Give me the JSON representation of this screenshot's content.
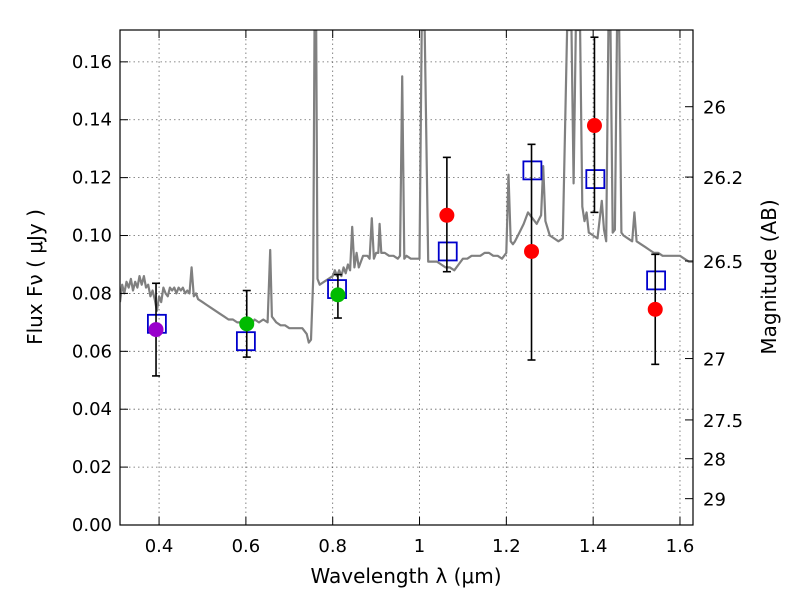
{
  "chart_data": {
    "type": "scatter",
    "xlabel": "Wavelength  λ (μm)",
    "ylabel": "Flux  Fν  ( μJy )",
    "y2label": "Magnitude (AB)",
    "xlim": [
      0.31,
      1.63
    ],
    "ylim": [
      0.0,
      0.171
    ],
    "grid": true,
    "x_ticks": [
      0.4,
      0.6,
      0.8,
      1.0,
      1.2,
      1.4,
      1.6
    ],
    "x_tick_labels": [
      "0.4",
      "0.6",
      "0.8",
      "1",
      "1.2",
      "1.4",
      "1.6"
    ],
    "y_ticks": [
      0.0,
      0.02,
      0.04,
      0.06,
      0.08,
      0.1,
      0.12,
      0.14,
      0.16
    ],
    "y_tick_labels": [
      "0.00",
      "0.02",
      "0.04",
      "0.06",
      "0.08",
      "0.10",
      "0.12",
      "0.14",
      "0.16"
    ],
    "y2_ticks": [
      {
        "label": "26",
        "flux": 0.1445
      },
      {
        "label": "26.2",
        "flux": 0.1202
      },
      {
        "label": "26.5",
        "flux": 0.0912
      },
      {
        "label": "27",
        "flux": 0.0575
      },
      {
        "label": "27.5",
        "flux": 0.0363
      },
      {
        "label": "28",
        "flux": 0.0229
      },
      {
        "label": "29",
        "flux": 0.0091
      }
    ],
    "series": [
      {
        "kind": "spectrum",
        "color": "#808080",
        "points": [
          [
            0.31,
            0.077
          ],
          [
            0.315,
            0.083
          ],
          [
            0.32,
            0.08
          ],
          [
            0.325,
            0.084
          ],
          [
            0.33,
            0.082
          ],
          [
            0.335,
            0.085
          ],
          [
            0.34,
            0.081
          ],
          [
            0.345,
            0.084
          ],
          [
            0.35,
            0.082
          ],
          [
            0.355,
            0.086
          ],
          [
            0.36,
            0.083
          ],
          [
            0.365,
            0.086
          ],
          [
            0.37,
            0.082
          ],
          [
            0.375,
            0.083
          ],
          [
            0.38,
            0.079
          ],
          [
            0.385,
            0.081
          ],
          [
            0.39,
            0.078
          ],
          [
            0.395,
            0.074
          ],
          [
            0.4,
            0.079
          ],
          [
            0.405,
            0.077
          ],
          [
            0.41,
            0.082
          ],
          [
            0.415,
            0.08
          ],
          [
            0.42,
            0.079
          ],
          [
            0.425,
            0.082
          ],
          [
            0.43,
            0.081
          ],
          [
            0.435,
            0.082
          ],
          [
            0.44,
            0.08
          ],
          [
            0.445,
            0.082
          ],
          [
            0.45,
            0.081
          ],
          [
            0.455,
            0.082
          ],
          [
            0.46,
            0.08
          ],
          [
            0.465,
            0.081
          ],
          [
            0.47,
            0.08
          ],
          [
            0.475,
            0.089
          ],
          [
            0.48,
            0.079
          ],
          [
            0.485,
            0.08
          ],
          [
            0.49,
            0.078
          ],
          [
            0.5,
            0.077
          ],
          [
            0.51,
            0.076
          ],
          [
            0.52,
            0.075
          ],
          [
            0.53,
            0.074
          ],
          [
            0.54,
            0.073
          ],
          [
            0.55,
            0.072
          ],
          [
            0.56,
            0.071
          ],
          [
            0.57,
            0.071
          ],
          [
            0.58,
            0.07
          ],
          [
            0.59,
            0.07
          ],
          [
            0.6,
            0.069
          ],
          [
            0.605,
            0.07
          ],
          [
            0.61,
            0.069
          ],
          [
            0.62,
            0.071
          ],
          [
            0.63,
            0.07
          ],
          [
            0.64,
            0.071
          ],
          [
            0.65,
            0.07
          ],
          [
            0.656,
            0.095
          ],
          [
            0.66,
            0.072
          ],
          [
            0.67,
            0.07
          ],
          [
            0.68,
            0.069
          ],
          [
            0.69,
            0.069
          ],
          [
            0.7,
            0.068
          ],
          [
            0.71,
            0.068
          ],
          [
            0.72,
            0.068
          ],
          [
            0.73,
            0.068
          ],
          [
            0.74,
            0.066
          ],
          [
            0.745,
            0.063
          ],
          [
            0.75,
            0.064
          ],
          [
            0.755,
            0.085
          ],
          [
            0.758,
            0.171
          ],
          [
            0.762,
            0.171
          ],
          [
            0.765,
            0.085
          ],
          [
            0.77,
            0.083
          ],
          [
            0.78,
            0.084
          ],
          [
            0.79,
            0.085
          ],
          [
            0.8,
            0.086
          ],
          [
            0.805,
            0.088
          ],
          [
            0.81,
            0.086
          ],
          [
            0.815,
            0.088
          ],
          [
            0.82,
            0.086
          ],
          [
            0.825,
            0.089
          ],
          [
            0.83,
            0.087
          ],
          [
            0.835,
            0.09
          ],
          [
            0.84,
            0.088
          ],
          [
            0.845,
            0.103
          ],
          [
            0.85,
            0.089
          ],
          [
            0.855,
            0.094
          ],
          [
            0.86,
            0.089
          ],
          [
            0.87,
            0.093
          ],
          [
            0.88,
            0.093
          ],
          [
            0.885,
            0.092
          ],
          [
            0.89,
            0.106
          ],
          [
            0.895,
            0.092
          ],
          [
            0.9,
            0.094
          ],
          [
            0.905,
            0.094
          ],
          [
            0.908,
            0.104
          ],
          [
            0.912,
            0.094
          ],
          [
            0.92,
            0.094
          ],
          [
            0.93,
            0.093
          ],
          [
            0.94,
            0.093
          ],
          [
            0.95,
            0.092
          ],
          [
            0.955,
            0.093
          ],
          [
            0.96,
            0.155
          ],
          [
            0.965,
            0.092
          ],
          [
            0.97,
            0.093
          ],
          [
            0.98,
            0.092
          ],
          [
            0.99,
            0.092
          ],
          [
            1.0,
            0.092
          ],
          [
            1.005,
            0.171
          ],
          [
            1.012,
            0.171
          ],
          [
            1.02,
            0.091
          ],
          [
            1.03,
            0.091
          ],
          [
            1.04,
            0.091
          ],
          [
            1.05,
            0.09
          ],
          [
            1.06,
            0.089
          ],
          [
            1.07,
            0.089
          ],
          [
            1.08,
            0.088
          ],
          [
            1.09,
            0.09
          ],
          [
            1.1,
            0.092
          ],
          [
            1.11,
            0.092
          ],
          [
            1.12,
            0.093
          ],
          [
            1.13,
            0.093
          ],
          [
            1.14,
            0.093
          ],
          [
            1.15,
            0.094
          ],
          [
            1.16,
            0.094
          ],
          [
            1.17,
            0.093
          ],
          [
            1.18,
            0.093
          ],
          [
            1.19,
            0.092
          ],
          [
            1.2,
            0.094
          ],
          [
            1.205,
            0.121
          ],
          [
            1.21,
            0.098
          ],
          [
            1.215,
            0.097
          ],
          [
            1.22,
            0.098
          ],
          [
            1.23,
            0.101
          ],
          [
            1.24,
            0.104
          ],
          [
            1.25,
            0.108
          ],
          [
            1.26,
            0.106
          ],
          [
            1.27,
            0.104
          ],
          [
            1.28,
            0.107
          ],
          [
            1.285,
            0.124
          ],
          [
            1.29,
            0.105
          ],
          [
            1.3,
            0.1
          ],
          [
            1.31,
            0.099
          ],
          [
            1.32,
            0.098
          ],
          [
            1.33,
            0.099
          ],
          [
            1.34,
            0.171
          ],
          [
            1.35,
            0.171
          ],
          [
            1.355,
            0.118
          ],
          [
            1.36,
            0.171
          ],
          [
            1.37,
            0.171
          ],
          [
            1.375,
            0.11
          ],
          [
            1.38,
            0.105
          ],
          [
            1.385,
            0.108
          ],
          [
            1.39,
            0.101
          ],
          [
            1.4,
            0.1
          ],
          [
            1.41,
            0.099
          ],
          [
            1.42,
            0.112
          ],
          [
            1.425,
            0.102
          ],
          [
            1.43,
            0.098
          ],
          [
            1.435,
            0.171
          ],
          [
            1.44,
            0.171
          ],
          [
            1.445,
            0.101
          ],
          [
            1.45,
            0.102
          ],
          [
            1.455,
            0.171
          ],
          [
            1.46,
            0.171
          ],
          [
            1.465,
            0.101
          ],
          [
            1.47,
            0.1
          ],
          [
            1.48,
            0.099
          ],
          [
            1.49,
            0.098
          ],
          [
            1.495,
            0.108
          ],
          [
            1.5,
            0.098
          ],
          [
            1.51,
            0.097
          ],
          [
            1.52,
            0.096
          ],
          [
            1.53,
            0.095
          ],
          [
            1.54,
            0.094
          ],
          [
            1.55,
            0.094
          ],
          [
            1.56,
            0.093
          ],
          [
            1.57,
            0.093
          ],
          [
            1.58,
            0.093
          ],
          [
            1.59,
            0.093
          ],
          [
            1.6,
            0.093
          ],
          [
            1.61,
            0.092
          ],
          [
            1.62,
            0.091
          ],
          [
            1.63,
            0.091
          ]
        ]
      },
      {
        "kind": "model-photometry",
        "marker": "open-square",
        "color": "#0000cc",
        "points": [
          [
            0.395,
            0.0695
          ],
          [
            0.6,
            0.0635
          ],
          [
            0.81,
            0.0815
          ],
          [
            1.065,
            0.0945
          ],
          [
            1.26,
            0.1225
          ],
          [
            1.405,
            0.1195
          ],
          [
            1.545,
            0.0845
          ]
        ]
      },
      {
        "kind": "observed-photometry",
        "marker": "filled-circle",
        "points": [
          {
            "x": 0.393,
            "y": 0.0675,
            "lo": 0.0515,
            "hi": 0.0835,
            "color": "#9900cc"
          },
          {
            "x": 0.602,
            "y": 0.0695,
            "lo": 0.058,
            "hi": 0.081,
            "color": "#00bb00"
          },
          {
            "x": 0.812,
            "y": 0.0795,
            "lo": 0.0715,
            "hi": 0.0865,
            "color": "#00bb00"
          },
          {
            "x": 1.063,
            "y": 0.107,
            "lo": 0.0875,
            "hi": 0.127,
            "color": "#ff0000"
          },
          {
            "x": 1.258,
            "y": 0.0945,
            "lo": 0.057,
            "hi": 0.1315,
            "color": "#ff0000"
          },
          {
            "x": 1.403,
            "y": 0.138,
            "lo": 0.108,
            "hi": 0.1685,
            "color": "#ff0000"
          },
          {
            "x": 1.543,
            "y": 0.0745,
            "lo": 0.0555,
            "hi": 0.0935,
            "color": "#ff0000"
          }
        ]
      }
    ]
  }
}
